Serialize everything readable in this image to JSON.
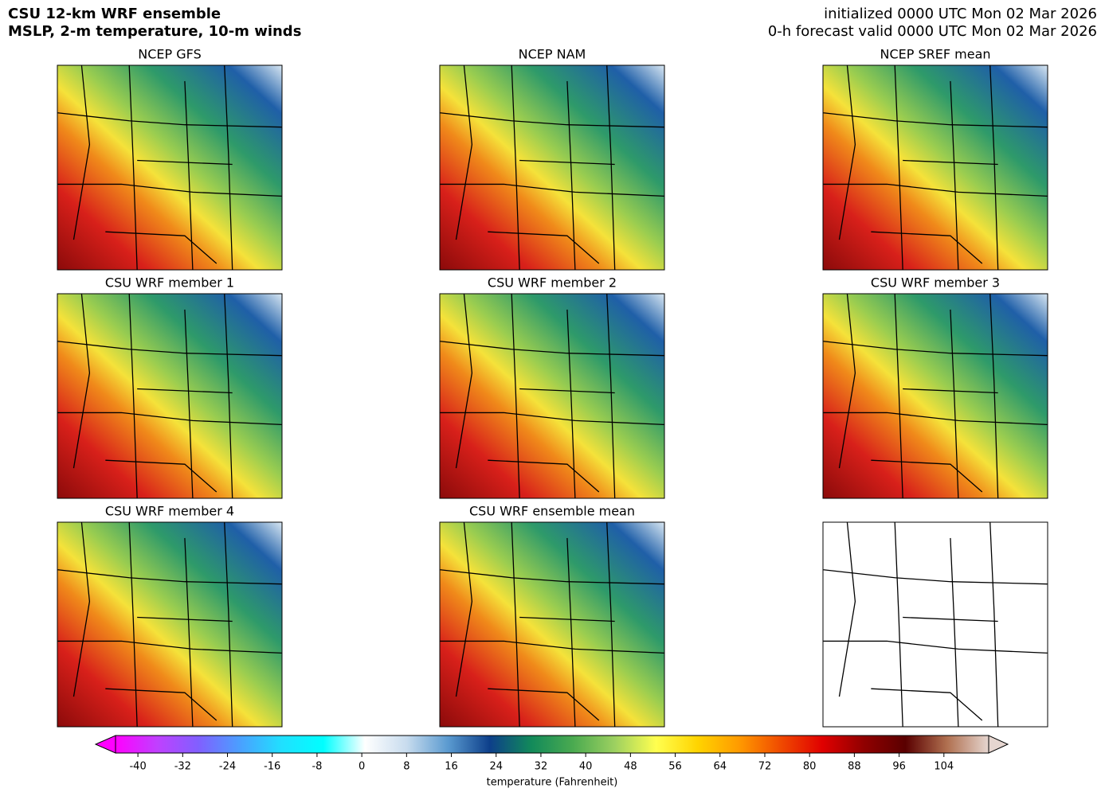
{
  "header": {
    "title_lines": [
      "CSU 12-km WRF ensemble",
      "MSLP, 2-m temperature, 10-m winds"
    ],
    "info_lines": [
      "initialized 0000 UTC Mon 02 Mar 2026",
      "0-h forecast valid 0000 UTC Mon 02 Mar 2026"
    ]
  },
  "panels": [
    "NCEP GFS",
    "NCEP NAM",
    "NCEP SREF mean",
    "CSU WRF member 1",
    "CSU WRF member 2",
    "CSU WRF member 3",
    "CSU WRF member 4",
    "CSU WRF ensemble mean"
  ],
  "colorbar": {
    "label": "temperature (Fahrenheit)",
    "clim": [
      -44,
      112
    ],
    "ticks": [
      -40,
      -32,
      -24,
      -16,
      -8,
      0,
      8,
      16,
      24,
      32,
      40,
      48,
      56,
      64,
      72,
      80,
      88,
      96,
      104
    ],
    "colors": [
      "#ff00ff",
      "#c040ff",
      "#8060ff",
      "#4aa0ff",
      "#20e0ff",
      "#00ffff",
      "#ffffff",
      "#c8dcee",
      "#5a9ad0",
      "#0d3f8a",
      "#128a5a",
      "#4aaa50",
      "#9cd060",
      "#ffff50",
      "#ffd400",
      "#ff9a00",
      "#f04a00",
      "#e00000",
      "#900000",
      "#5a0000",
      "#b07050",
      "#e6d6d0"
    ]
  }
}
